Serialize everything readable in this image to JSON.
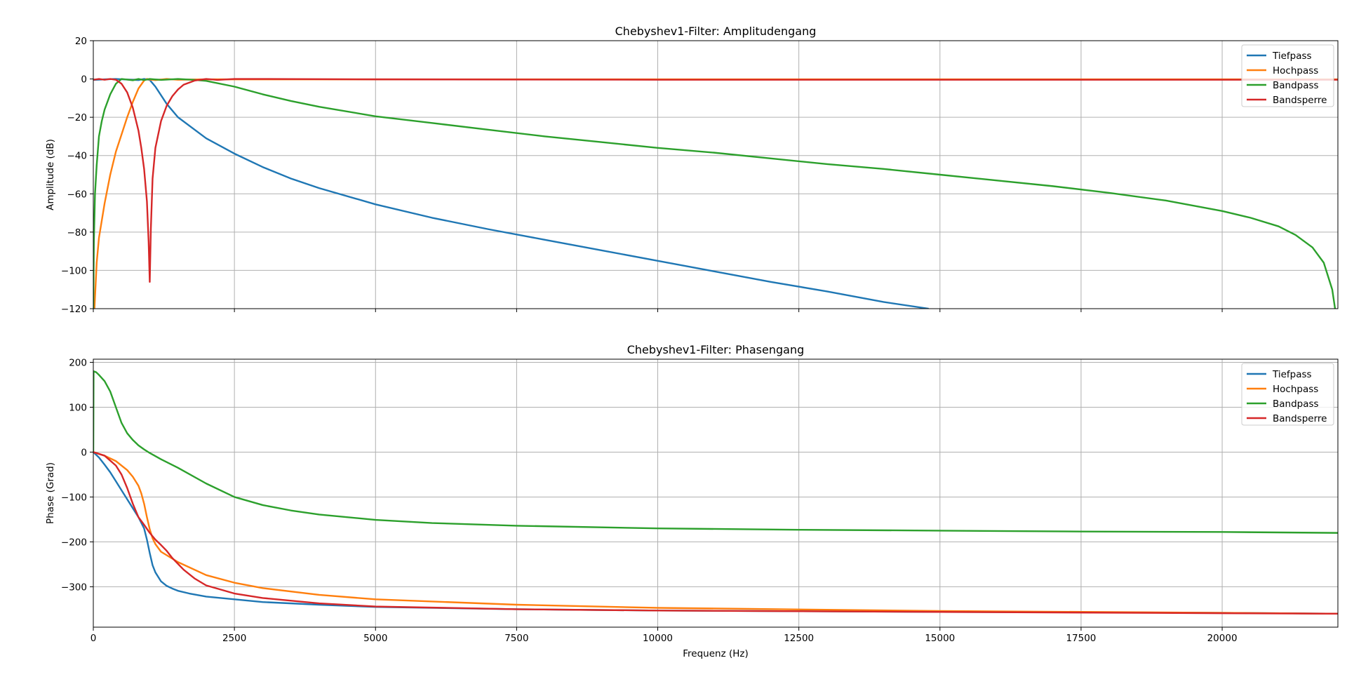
{
  "figure": {
    "background": "#ffffff"
  },
  "chart_data": [
    {
      "type": "line",
      "title": "Chebyshev1-Filter: Amplitudengang",
      "xlabel": "",
      "ylabel": "Amplitude (dB)",
      "xlim": [
        0,
        22050
      ],
      "ylim": [
        -120,
        20
      ],
      "xticks": [
        0,
        2500,
        5000,
        7500,
        10000,
        12500,
        15000,
        17500,
        20000
      ],
      "xtick_labels": [],
      "yticks": [
        20,
        0,
        -20,
        -40,
        -60,
        -80,
        -100,
        -120
      ],
      "ytick_labels": [
        "20",
        "0",
        "−20",
        "−40",
        "−60",
        "−80",
        "−100",
        "−120"
      ],
      "grid": true,
      "legend": "top-right",
      "series": [
        {
          "name": "Tiefpass",
          "color": "#1f77b4",
          "x": [
            0,
            200,
            400,
            600,
            800,
            900,
            1000,
            1100,
            1300,
            1500,
            2000,
            2500,
            3000,
            3500,
            4000,
            5000,
            6000,
            7000,
            8000,
            9000,
            10000,
            11000,
            12000,
            13000,
            14000,
            14800
          ],
          "y": [
            -0.5,
            -0.2,
            0,
            -0.3,
            -0.6,
            0,
            -0.5,
            -4,
            -13,
            -20,
            -31,
            -39,
            -46,
            -52,
            -57,
            -65.5,
            -72.5,
            -78.5,
            -84,
            -89.5,
            -95,
            -100.5,
            -106,
            -111,
            -116.5,
            -120
          ]
        },
        {
          "name": "Hochpass",
          "color": "#ff7f0e",
          "x": [
            20,
            60,
            100,
            150,
            200,
            300,
            400,
            500,
            600,
            700,
            800,
            900,
            950,
            1000,
            1100,
            1300,
            1500,
            2000,
            3000,
            5000,
            8000,
            12000,
            16000,
            20000,
            22050
          ],
          "y": [
            -120,
            -96,
            -83,
            -74,
            -65,
            -50,
            -38,
            -29,
            -20,
            -12,
            -5,
            -0.8,
            0,
            -0.3,
            -0.6,
            0,
            -0.4,
            -0.2,
            -0.2,
            -0.2,
            -0.2,
            -0.2,
            -0.2,
            -0.2,
            -0.2
          ]
        },
        {
          "name": "Bandpass",
          "color": "#2ca02c",
          "x": [
            0,
            10,
            30,
            60,
            100,
            150,
            200,
            300,
            400,
            500,
            600,
            700,
            800,
            900,
            1000,
            1200,
            1500,
            1800,
            2000,
            2500,
            3000,
            3500,
            4000,
            5000,
            6000,
            7000,
            8000,
            9000,
            10000,
            11000,
            12000,
            13000,
            14000,
            15000,
            16000,
            17000,
            18000,
            19000,
            20000,
            20500,
            21000,
            21300,
            21600,
            21800,
            21950,
            22000
          ],
          "y": [
            -120,
            -85,
            -60,
            -45,
            -30,
            -22,
            -16,
            -8,
            -2.5,
            0,
            -0.3,
            -0.7,
            0,
            -0.6,
            0,
            -0.5,
            0,
            -0.5,
            -1,
            -4,
            -8,
            -11.5,
            -14.5,
            -19.5,
            -23,
            -26.5,
            -30,
            -33,
            -36,
            -38.5,
            -41.5,
            -44.5,
            -47,
            -50,
            -53,
            -56,
            -59.5,
            -63.5,
            -69,
            -72.5,
            -77,
            -81.5,
            -88,
            -96,
            -110,
            -120
          ]
        },
        {
          "name": "Bandsperre",
          "color": "#d62728",
          "x": [
            0,
            100,
            200,
            300,
            400,
            500,
            600,
            700,
            800,
            850,
            900,
            950,
            980,
            1000,
            1020,
            1050,
            1100,
            1200,
            1300,
            1400,
            1500,
            1600,
            1800,
            2000,
            2200,
            2500,
            3000,
            5000,
            10000,
            15000,
            20000,
            22050
          ],
          "y": [
            -0.4,
            0,
            -0.4,
            0,
            -0.4,
            -2.5,
            -7,
            -15,
            -27,
            -36,
            -47,
            -64,
            -85,
            -106,
            -78,
            -52,
            -36,
            -22,
            -14,
            -9,
            -5.5,
            -3,
            -0.8,
            0,
            -0.5,
            0,
            0,
            -0.2,
            -0.4,
            -0.4,
            -0.4,
            -0.4
          ]
        }
      ]
    },
    {
      "type": "line",
      "title": "Chebyshev1-Filter: Phasengang",
      "xlabel": "Frequenz (Hz)",
      "ylabel": "Phase (Grad)",
      "xlim": [
        0,
        22050
      ],
      "ylim": [
        -390,
        207
      ],
      "xticks": [
        0,
        2500,
        5000,
        7500,
        10000,
        12500,
        15000,
        17500,
        20000
      ],
      "xtick_labels": [
        "0",
        "2500",
        "5000",
        "7500",
        "10000",
        "12500",
        "15000",
        "17500",
        "20000"
      ],
      "yticks": [
        200,
        100,
        0,
        -100,
        -200,
        -300
      ],
      "ytick_labels": [
        "200",
        "100",
        "0",
        "−100",
        "−200",
        "−300"
      ],
      "grid": true,
      "legend": "top-right",
      "series": [
        {
          "name": "Tiefpass",
          "color": "#1f77b4",
          "x": [
            0,
            100,
            200,
            300,
            400,
            500,
            600,
            700,
            800,
            900,
            950,
            1000,
            1050,
            1100,
            1200,
            1300,
            1400,
            1500,
            1700,
            2000,
            2500,
            3000,
            4000,
            5000,
            7500,
            10000,
            15000,
            20000,
            22050
          ],
          "y": [
            0,
            -12,
            -28,
            -45,
            -65,
            -85,
            -105,
            -125,
            -145,
            -170,
            -195,
            -225,
            -252,
            -268,
            -288,
            -298,
            -304,
            -309,
            -315,
            -322,
            -328,
            -334,
            -340,
            -345,
            -350,
            -353,
            -356,
            -358,
            -360
          ]
        },
        {
          "name": "Hochpass",
          "color": "#ff7f0e",
          "x": [
            0,
            200,
            400,
            600,
            700,
            800,
            850,
            900,
            950,
            1000,
            1050,
            1100,
            1200,
            1500,
            2000,
            2500,
            3000,
            4000,
            5000,
            7500,
            10000,
            15000,
            20000,
            22050
          ],
          "y": [
            0,
            -8,
            -20,
            -40,
            -55,
            -75,
            -92,
            -115,
            -145,
            -172,
            -192,
            -205,
            -222,
            -245,
            -274,
            -291,
            -303,
            -318,
            -328,
            -340,
            -347,
            -354,
            -358,
            -360
          ]
        },
        {
          "name": "Bandpass",
          "color": "#2ca02c",
          "x": [
            0,
            5,
            50,
            100,
            200,
            300,
            400,
            500,
            600,
            700,
            800,
            900,
            1000,
            1200,
            1500,
            2000,
            2500,
            3000,
            3500,
            4000,
            5000,
            6000,
            7500,
            10000,
            12500,
            15000,
            17500,
            20000,
            22050
          ],
          "y": [
            0,
            180,
            178,
            172,
            158,
            135,
            100,
            65,
            42,
            27,
            15,
            6,
            -2,
            -16,
            -35,
            -70,
            -100,
            -118,
            -130,
            -139,
            -151,
            -158,
            -164,
            -170,
            -173,
            -175,
            -177,
            -178,
            -180
          ]
        },
        {
          "name": "Bandsperre",
          "color": "#d62728",
          "x": [
            0,
            200,
            400,
            500,
            600,
            700,
            800,
            900,
            1000,
            1100,
            1200,
            1300,
            1400,
            1600,
            1800,
            2000,
            2500,
            3000,
            4000,
            5000,
            7500,
            10000,
            15000,
            20000,
            22050
          ],
          "y": [
            0,
            -8,
            -30,
            -50,
            -80,
            -115,
            -145,
            -162,
            -180,
            -195,
            -207,
            -220,
            -236,
            -262,
            -282,
            -297,
            -315,
            -325,
            -337,
            -344,
            -350,
            -353,
            -356,
            -359,
            -360
          ]
        }
      ]
    }
  ]
}
